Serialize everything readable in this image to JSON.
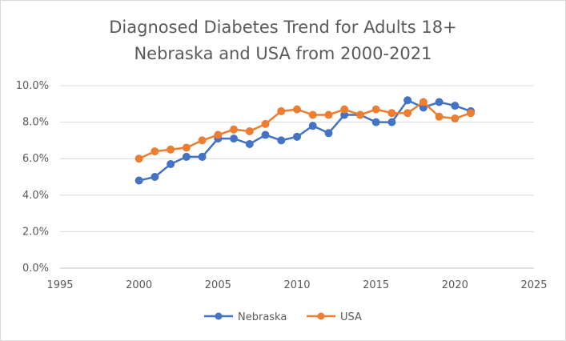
{
  "chart_data": {
    "type": "scatter",
    "title": "Diagnosed Diabetes Trend for Adults 18+",
    "subtitle": "Nebraska and USA from 2000-2021",
    "xlim": [
      1995,
      2025
    ],
    "ylim": [
      0,
      10
    ],
    "x_ticks": [
      1995,
      2000,
      2005,
      2010,
      2015,
      2020,
      2025
    ],
    "x_tick_labels": [
      "1995",
      "2000",
      "2005",
      "2010",
      "2015",
      "2020",
      "2025"
    ],
    "y_ticks": [
      0,
      2,
      4,
      6,
      8,
      10
    ],
    "y_tick_labels": [
      "0.0%",
      "2.0%",
      "4.0%",
      "6.0%",
      "8.0%",
      "10.0%"
    ],
    "grid": "horizontal",
    "legend_position": "bottom",
    "x": [
      2000,
      2001,
      2002,
      2003,
      2004,
      2005,
      2006,
      2007,
      2008,
      2009,
      2010,
      2011,
      2012,
      2013,
      2014,
      2015,
      2016,
      2017,
      2018,
      2019,
      2020,
      2021
    ],
    "series": [
      {
        "name": "Nebraska",
        "color": "#4472C4",
        "values": [
          4.8,
          5.0,
          5.7,
          6.1,
          6.1,
          7.1,
          7.1,
          6.8,
          7.3,
          7.0,
          7.2,
          7.8,
          7.4,
          8.4,
          8.4,
          8.0,
          8.0,
          9.2,
          8.8,
          9.1,
          8.9,
          8.6
        ]
      },
      {
        "name": "USA",
        "color": "#ED7D31",
        "values": [
          6.0,
          6.4,
          6.5,
          6.6,
          7.0,
          7.3,
          7.6,
          7.5,
          7.9,
          8.6,
          8.7,
          8.4,
          8.4,
          8.7,
          8.4,
          8.7,
          8.5,
          8.5,
          9.1,
          8.3,
          8.2,
          8.5
        ]
      }
    ]
  }
}
